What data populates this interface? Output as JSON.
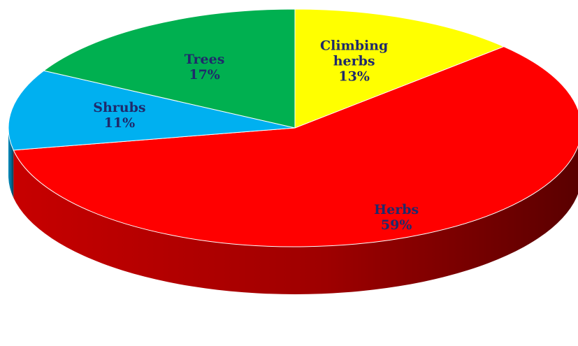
{
  "chart_data": {
    "type": "pie",
    "style": "3d",
    "slices": [
      {
        "category": "Climbing herbs",
        "label_lines": [
          "Climbing",
          "herbs"
        ],
        "percent_label": "13%",
        "value": 13,
        "color": "#ffff00"
      },
      {
        "category": "Herbs",
        "label_lines": [
          "Herbs"
        ],
        "percent_label": "59%",
        "value": 59,
        "color": "#ff0000"
      },
      {
        "category": "Shrubs",
        "label_lines": [
          "Shrubs"
        ],
        "percent_label": "11%",
        "value": 11,
        "color": "#00b0f0"
      },
      {
        "category": "Trees",
        "label_lines": [
          "Trees"
        ],
        "percent_label": "17%",
        "value": 17,
        "color": "#00b050"
      }
    ],
    "start_angle_deg": 0,
    "direction": "clockwise",
    "legend": "none",
    "labels": "inside"
  }
}
